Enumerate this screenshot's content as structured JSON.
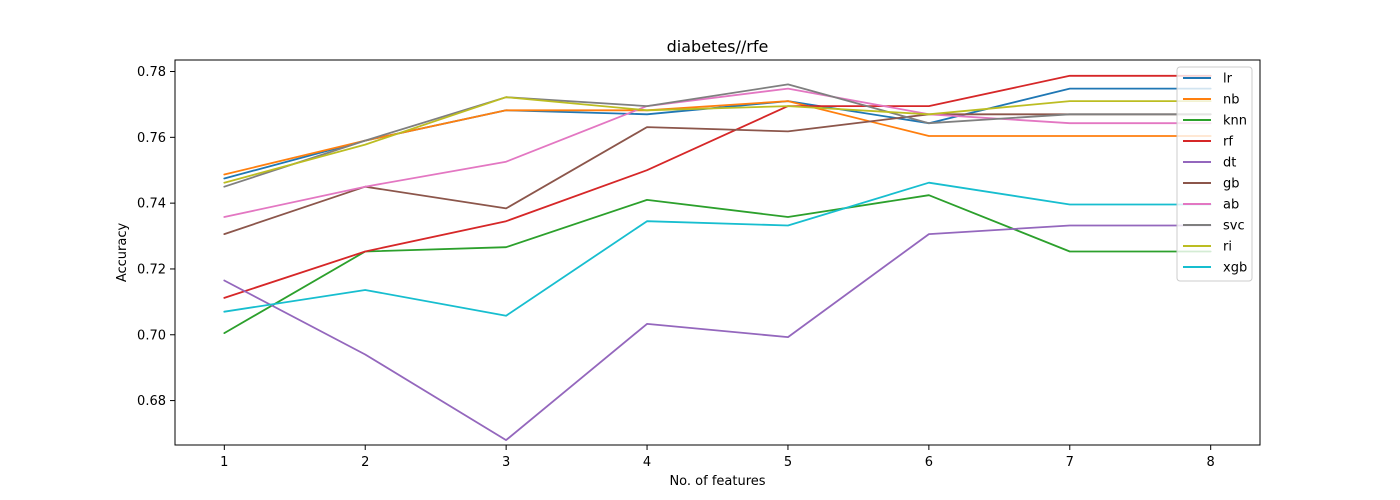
{
  "chart_data": {
    "type": "line",
    "title": "diabetes//rfe",
    "xlabel": "No. of features",
    "ylabel": "Accuracy",
    "x": [
      1,
      2,
      3,
      4,
      5,
      6,
      7,
      8
    ],
    "xlim": [
      0.65,
      8.35
    ],
    "ylim": [
      0.6665,
      0.7835
    ],
    "yticks": [
      0.68,
      0.7,
      0.72,
      0.74,
      0.76,
      0.78
    ],
    "ytick_labels": [
      "0.68",
      "0.70",
      "0.72",
      "0.74",
      "0.76",
      "0.78"
    ],
    "xticks": [
      1,
      2,
      3,
      4,
      5,
      6,
      7,
      8
    ],
    "xtick_labels": [
      "1",
      "2",
      "3",
      "4",
      "5",
      "6",
      "7",
      "8"
    ],
    "grid": false,
    "legend_position": "top-right",
    "series": [
      {
        "name": "lr",
        "color": "#1f77b4",
        "values": [
          0.7475,
          0.759,
          0.7682,
          0.767,
          0.771,
          0.7643,
          0.7748,
          0.7748
        ]
      },
      {
        "name": "nb",
        "color": "#ff7f0e",
        "values": [
          0.7487,
          0.759,
          0.7682,
          0.7682,
          0.771,
          0.7604,
          0.7604,
          0.7604
        ]
      },
      {
        "name": "knn",
        "color": "#2ca02c",
        "values": [
          0.7005,
          0.7253,
          0.7266,
          0.741,
          0.7358,
          0.7424,
          0.7253,
          0.7253
        ]
      },
      {
        "name": "rf",
        "color": "#d62728",
        "values": [
          0.7112,
          0.7253,
          0.7345,
          0.75,
          0.7695,
          0.7695,
          0.7787,
          0.7787
        ]
      },
      {
        "name": "dt",
        "color": "#9467bd",
        "values": [
          0.7165,
          0.694,
          0.668,
          0.7033,
          0.6993,
          0.7306,
          0.7332,
          0.7332
        ]
      },
      {
        "name": "gb",
        "color": "#8c564b",
        "values": [
          0.7306,
          0.745,
          0.7384,
          0.7631,
          0.7618,
          0.767,
          0.767,
          0.767
        ]
      },
      {
        "name": "ab",
        "color": "#e377c2",
        "values": [
          0.7358,
          0.745,
          0.7526,
          0.7695,
          0.7748,
          0.767,
          0.7643,
          0.7643
        ]
      },
      {
        "name": "svc",
        "color": "#7f7f7f",
        "values": [
          0.745,
          0.759,
          0.7722,
          0.7695,
          0.7761,
          0.7643,
          0.767,
          0.767
        ]
      },
      {
        "name": "ri",
        "color": "#bcbd22",
        "values": [
          0.7462,
          0.7578,
          0.7722,
          0.7682,
          0.7695,
          0.767,
          0.771,
          0.771
        ]
      },
      {
        "name": "xgb",
        "color": "#17becf",
        "values": [
          0.707,
          0.7136,
          0.7058,
          0.7345,
          0.7332,
          0.7462,
          0.7396,
          0.7396
        ]
      }
    ]
  }
}
